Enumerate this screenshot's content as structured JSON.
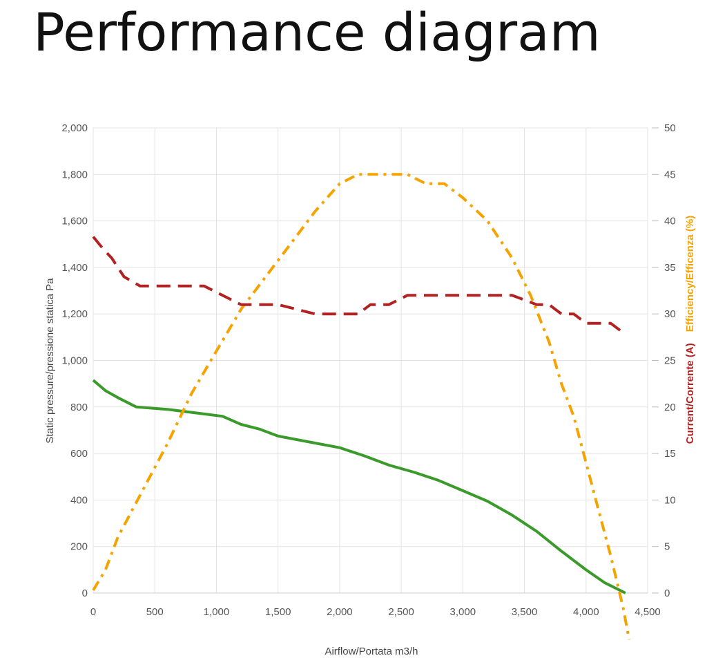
{
  "page": {
    "title": "Performance diagram"
  },
  "chart_data": {
    "type": "line",
    "title": "Performance diagram",
    "xlabel": "Airflow/Portata m3/h",
    "ylabel_left": "Static pressure/pressione statica Pa",
    "ylabel_right_parts": [
      {
        "text": "Current/Corrente (A)",
        "color": "#b22222"
      },
      {
        "text": "Efficiency/Efficenza (%)",
        "color": "#f4a300"
      }
    ],
    "xlim": [
      0,
      4500
    ],
    "ylim_left": [
      0,
      2000
    ],
    "ylim_right": [
      0,
      50
    ],
    "x_ticks": [
      0,
      500,
      1000,
      1500,
      2000,
      2500,
      3000,
      3500,
      4000,
      4500
    ],
    "x_tick_labels": [
      "0",
      "500",
      "1,000",
      "1,500",
      "2,000",
      "2,500",
      "3,000",
      "3,500",
      "4,000",
      "4,500"
    ],
    "y_left_ticks": [
      0,
      200,
      400,
      600,
      800,
      1000,
      1200,
      1400,
      1600,
      1800,
      2000
    ],
    "y_left_tick_labels": [
      "0",
      "200",
      "400",
      "600",
      "800",
      "1,000",
      "1,200",
      "1,400",
      "1,600",
      "1,800",
      "2,000"
    ],
    "y_right_ticks": [
      0,
      5,
      10,
      15,
      20,
      25,
      30,
      35,
      40,
      45,
      50
    ],
    "y_right_tick_labels": [
      "0",
      "5",
      "10",
      "15",
      "20",
      "25",
      "30",
      "35",
      "40",
      "45",
      "50"
    ],
    "grid": true,
    "legend": "none",
    "series": [
      {
        "key": "pressure",
        "axis": "left",
        "color": "#3a9a2a",
        "style": "solid",
        "x": [
          0,
          100,
          200,
          350,
          600,
          900,
          1050,
          1200,
          1350,
          1500,
          1800,
          2000,
          2200,
          2400,
          2600,
          2800,
          3000,
          3200,
          3400,
          3600,
          3800,
          4000,
          4150,
          4320
        ],
        "y": [
          915,
          870,
          840,
          800,
          790,
          770,
          760,
          725,
          705,
          675,
          645,
          625,
          590,
          550,
          520,
          485,
          440,
          395,
          335,
          265,
          180,
          100,
          45,
          0
        ]
      },
      {
        "key": "efficiency",
        "axis": "right",
        "color": "#f4a300",
        "style": "dashdot",
        "x": [
          0,
          100,
          200,
          400,
          600,
          800,
          1000,
          1200,
          1400,
          1600,
          1800,
          2000,
          2150,
          2300,
          2500,
          2550,
          2700,
          2850,
          3000,
          3200,
          3400,
          3550,
          3700,
          3800,
          3900,
          4000,
          4100,
          4200,
          4300,
          4350
        ],
        "y": [
          0.3,
          2.5,
          6,
          11,
          16,
          21.5,
          26,
          30.5,
          34,
          37.5,
          41,
          44,
          45,
          45,
          45,
          45,
          44,
          44,
          42.5,
          40,
          36,
          32,
          27,
          22.5,
          19,
          14,
          9,
          4,
          -1.5,
          -5
        ]
      },
      {
        "key": "current",
        "axis": "right",
        "color": "#b22222",
        "style": "dashed",
        "x": [
          0,
          80,
          150,
          250,
          380,
          500,
          700,
          900,
          1050,
          1200,
          1400,
          1500,
          1800,
          2000,
          2150,
          2250,
          2400,
          2550,
          2800,
          3000,
          3200,
          3400,
          3600,
          3700,
          3800,
          3900,
          4000,
          4100,
          4200,
          4300
        ],
        "y": [
          38.3,
          37,
          36,
          34,
          33,
          33,
          33,
          33,
          32,
          31,
          31,
          31,
          30,
          30,
          30,
          31,
          31,
          32,
          32,
          32,
          32,
          32,
          31,
          31,
          30,
          30,
          29,
          29,
          29,
          28
        ]
      }
    ]
  }
}
